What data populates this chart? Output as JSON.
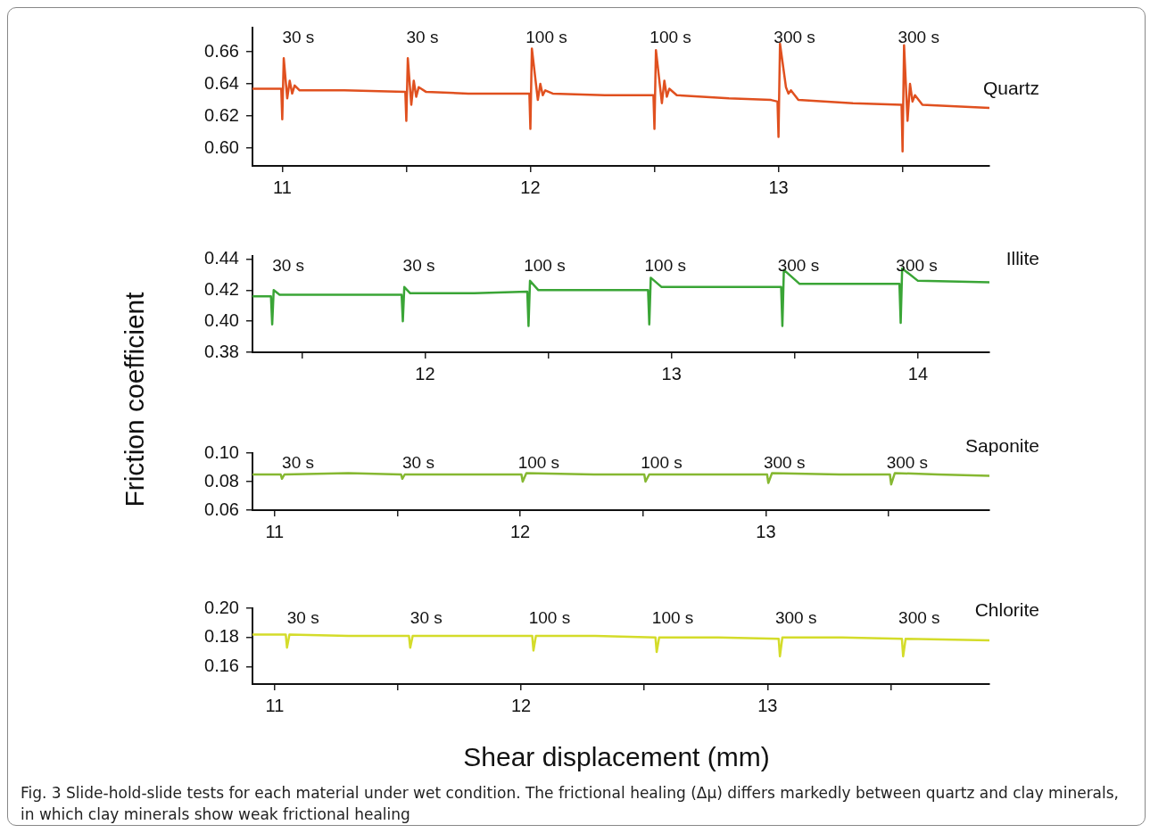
{
  "chart_data": [
    {
      "type": "line",
      "ylabel": "Friction coefficient",
      "xlim": [
        10.88,
        13.85
      ],
      "ylim": [
        0.589,
        0.675
      ],
      "xticks": [
        11,
        {
          "value": 11.5,
          "label": null
        },
        12,
        {
          "value": 12.5,
          "label": null
        },
        13,
        {
          "value": 13.5,
          "label": null
        }
      ],
      "yticks": [
        {
          "value": 0.6,
          "label": "0.60"
        },
        0.62,
        0.64,
        0.66
      ],
      "marker": "none",
      "line_style": "solid",
      "grid": false,
      "series": [
        {
          "name": "Quartz",
          "color": "#e0501f",
          "x": [
            10.88,
            10.996,
            11.0,
            11.006,
            11.02,
            11.03,
            11.04,
            11.05,
            11.07,
            11.25,
            11.496,
            11.5,
            11.506,
            11.52,
            11.53,
            11.54,
            11.55,
            11.58,
            11.75,
            11.996,
            12.0,
            12.006,
            12.03,
            12.04,
            12.05,
            12.06,
            12.09,
            12.3,
            12.496,
            12.5,
            12.506,
            12.53,
            12.54,
            12.55,
            12.56,
            12.59,
            12.8,
            12.97,
            12.996,
            13.0,
            13.006,
            13.03,
            13.04,
            13.05,
            13.08,
            13.3,
            13.496,
            13.5,
            13.506,
            13.52,
            13.53,
            13.54,
            13.55,
            13.58,
            13.85
          ],
          "values": [
            0.637,
            0.637,
            0.618,
            0.656,
            0.631,
            0.642,
            0.634,
            0.639,
            0.636,
            0.636,
            0.635,
            0.617,
            0.656,
            0.627,
            0.642,
            0.632,
            0.638,
            0.635,
            0.634,
            0.634,
            0.612,
            0.662,
            0.63,
            0.64,
            0.633,
            0.636,
            0.634,
            0.633,
            0.633,
            0.612,
            0.661,
            0.628,
            0.642,
            0.632,
            0.637,
            0.633,
            0.631,
            0.63,
            0.629,
            0.607,
            0.665,
            0.638,
            0.634,
            0.636,
            0.63,
            0.628,
            0.627,
            0.598,
            0.664,
            0.617,
            0.64,
            0.629,
            0.633,
            0.627,
            0.625
          ]
        }
      ],
      "annotations": [
        "30 s",
        "30 s",
        "100 s",
        "100 s",
        "300 s",
        "300 s"
      ]
    },
    {
      "type": "line",
      "xlim": [
        11.3,
        14.29
      ],
      "ylim": [
        0.38,
        0.442
      ],
      "xticks": [
        {
          "value": 11.5,
          "label": null
        },
        12,
        {
          "value": 12.5,
          "label": null
        },
        13,
        {
          "value": 13.5,
          "label": null
        },
        14
      ],
      "yticks": [
        0.38,
        {
          "value": 0.4,
          "label": "0.40"
        },
        0.42,
        0.44
      ],
      "marker": "none",
      "line_style": "solid",
      "grid": false,
      "series": [
        {
          "name": "Illite",
          "color": "#3aa536",
          "x": [
            11.3,
            11.375,
            11.38,
            11.386,
            11.41,
            11.6,
            11.905,
            11.91,
            11.916,
            11.94,
            12.2,
            12.415,
            12.42,
            12.426,
            12.46,
            12.7,
            12.905,
            12.91,
            12.916,
            12.96,
            13.2,
            13.445,
            13.45,
            13.456,
            13.52,
            13.7,
            13.925,
            13.93,
            13.936,
            14.0,
            14.29
          ],
          "values": [
            0.416,
            0.416,
            0.398,
            0.42,
            0.417,
            0.417,
            0.417,
            0.4,
            0.422,
            0.418,
            0.418,
            0.419,
            0.397,
            0.426,
            0.42,
            0.42,
            0.42,
            0.398,
            0.428,
            0.422,
            0.422,
            0.422,
            0.397,
            0.433,
            0.424,
            0.424,
            0.424,
            0.399,
            0.434,
            0.426,
            0.425
          ]
        }
      ],
      "annotations": [
        "30 s",
        "30 s",
        "100 s",
        "100 s",
        "300 s",
        "300 s"
      ]
    },
    {
      "type": "line",
      "xlim": [
        10.91,
        13.91
      ],
      "ylim": [
        0.06,
        0.1
      ],
      "xticks": [
        11,
        {
          "value": 11.5,
          "label": null
        },
        12,
        {
          "value": 12.5,
          "label": null
        },
        13,
        {
          "value": 13.5,
          "label": null
        }
      ],
      "yticks": [
        0.06,
        0.08,
        {
          "value": 0.1,
          "label": "0.10"
        }
      ],
      "marker": "none",
      "line_style": "solid",
      "grid": false,
      "series": [
        {
          "name": "Saponite",
          "color": "#86b832",
          "x": [
            10.91,
            11.025,
            11.03,
            11.04,
            11.3,
            11.515,
            11.52,
            11.53,
            11.8,
            12.005,
            12.01,
            12.025,
            12.3,
            12.505,
            12.51,
            12.525,
            12.8,
            13.005,
            13.01,
            13.025,
            13.3,
            13.505,
            13.51,
            13.525,
            13.7,
            13.91
          ],
          "values": [
            0.085,
            0.085,
            0.082,
            0.085,
            0.086,
            0.085,
            0.082,
            0.085,
            0.085,
            0.085,
            0.08,
            0.086,
            0.085,
            0.085,
            0.08,
            0.085,
            0.085,
            0.085,
            0.079,
            0.086,
            0.085,
            0.085,
            0.078,
            0.086,
            0.085,
            0.084
          ]
        }
      ],
      "annotations": [
        "30 s",
        "30 s",
        "100 s",
        "100 s",
        "300 s",
        "300 s"
      ]
    },
    {
      "type": "line",
      "xlabel": "Shear displacement (mm)",
      "xlim": [
        10.91,
        13.9
      ],
      "ylim": [
        0.148,
        0.2
      ],
      "xticks": [
        11,
        {
          "value": 11.5,
          "label": null
        },
        12,
        {
          "value": 12.5,
          "label": null
        },
        13,
        {
          "value": 13.5,
          "label": null
        }
      ],
      "yticks": [
        0.16,
        0.18,
        {
          "value": 0.2,
          "label": "0.20"
        }
      ],
      "marker": "none",
      "line_style": "solid",
      "grid": false,
      "series": [
        {
          "name": "Chlorite",
          "color": "#d4dc2a",
          "x": [
            10.91,
            11.045,
            11.05,
            11.06,
            11.3,
            11.545,
            11.55,
            11.56,
            11.8,
            12.045,
            12.05,
            12.06,
            12.3,
            12.545,
            12.55,
            12.56,
            12.8,
            13.045,
            13.05,
            13.06,
            13.3,
            13.545,
            13.55,
            13.56,
            13.9
          ],
          "values": [
            0.182,
            0.182,
            0.173,
            0.182,
            0.181,
            0.181,
            0.173,
            0.181,
            0.181,
            0.181,
            0.171,
            0.181,
            0.181,
            0.18,
            0.17,
            0.18,
            0.18,
            0.179,
            0.167,
            0.18,
            0.18,
            0.179,
            0.167,
            0.179,
            0.178
          ]
        }
      ],
      "annotations": [
        "30 s",
        "30 s",
        "100 s",
        "100 s",
        "300 s",
        "300 s",
        "Fig. 3 Slide-hold-slide tests for each material under wet condition. The frictional healing (Δμ) differs markedly between quartz and clay minerals, in which clay minerals show weak frictional healing"
      ]
    }
  ]
}
